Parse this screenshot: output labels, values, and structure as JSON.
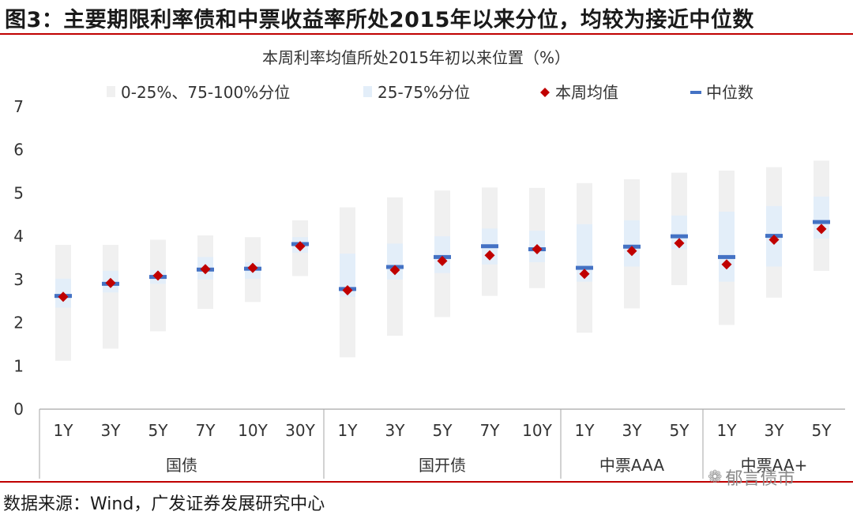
{
  "figure": {
    "title": "图3：主要期限利率债和中票收益率所处2015年以来分位，均较为接近中位数",
    "source": "数据来源：Wind，广发证券发展研究中心",
    "watermark": "郁言债市",
    "watermark_icon": "wechat-icon"
  },
  "colors": {
    "outer_range": "#f0f0f0",
    "inner_range": "#e3eef9",
    "weekly_mean": "#c00000",
    "median": "#4472c4",
    "axis": "#a6a6a6",
    "rule": "#c00000"
  },
  "chart_data": {
    "type": "box-range",
    "title": "本周利率均值所处2015年初以来位置（%）",
    "ylim": [
      0,
      7
    ],
    "yticks": [
      "0",
      "1",
      "2",
      "3",
      "4",
      "5",
      "6",
      "7"
    ],
    "legend": {
      "placement": "top",
      "items": [
        {
          "key": "outer",
          "label": "0-25%、75-100%分位"
        },
        {
          "key": "inner",
          "label": "25-75%分位"
        },
        {
          "key": "mean",
          "label": "本周均值"
        },
        {
          "key": "median",
          "label": "中位数"
        }
      ]
    },
    "groups": [
      {
        "name": "国债",
        "count": 6
      },
      {
        "name": "国开债",
        "count": 5
      },
      {
        "name": "中票AAA",
        "count": 3
      },
      {
        "name": "中票AA+",
        "count": 3
      }
    ],
    "categories": [
      "1Y",
      "3Y",
      "5Y",
      "7Y",
      "10Y",
      "30Y",
      "1Y",
      "3Y",
      "5Y",
      "7Y",
      "10Y",
      "1Y",
      "3Y",
      "5Y",
      "1Y",
      "3Y",
      "5Y"
    ],
    "series": [
      {
        "name": "min",
        "values": [
          1.12,
          1.4,
          1.8,
          2.32,
          2.48,
          3.08,
          1.2,
          1.7,
          2.13,
          2.62,
          2.8,
          1.77,
          2.33,
          2.87,
          1.95,
          2.58,
          3.2
        ]
      },
      {
        "name": "p25",
        "values": [
          2.35,
          2.7,
          2.9,
          3.0,
          3.02,
          3.62,
          2.6,
          3.0,
          3.15,
          3.35,
          3.4,
          2.95,
          3.3,
          3.7,
          2.95,
          3.3,
          3.95
        ]
      },
      {
        "name": "p75",
        "values": [
          3.02,
          3.2,
          3.22,
          3.52,
          3.4,
          3.98,
          3.6,
          3.83,
          4.0,
          4.18,
          4.13,
          4.28,
          4.37,
          4.48,
          4.57,
          4.7,
          4.92
        ]
      },
      {
        "name": "max",
        "values": [
          3.8,
          3.8,
          3.92,
          4.02,
          3.98,
          4.37,
          4.67,
          4.9,
          5.06,
          5.13,
          5.12,
          5.23,
          5.32,
          5.47,
          5.52,
          5.6,
          5.75
        ]
      },
      {
        "name": "中位数",
        "values": [
          2.62,
          2.9,
          3.06,
          3.23,
          3.25,
          3.82,
          2.78,
          3.29,
          3.52,
          3.77,
          3.7,
          3.27,
          3.76,
          4.0,
          3.52,
          4.01,
          4.33
        ]
      },
      {
        "name": "本周均值",
        "values": [
          2.6,
          2.92,
          3.09,
          3.24,
          3.27,
          3.77,
          2.75,
          3.22,
          3.43,
          3.56,
          3.7,
          3.13,
          3.66,
          3.84,
          3.35,
          3.92,
          4.17
        ]
      }
    ]
  }
}
